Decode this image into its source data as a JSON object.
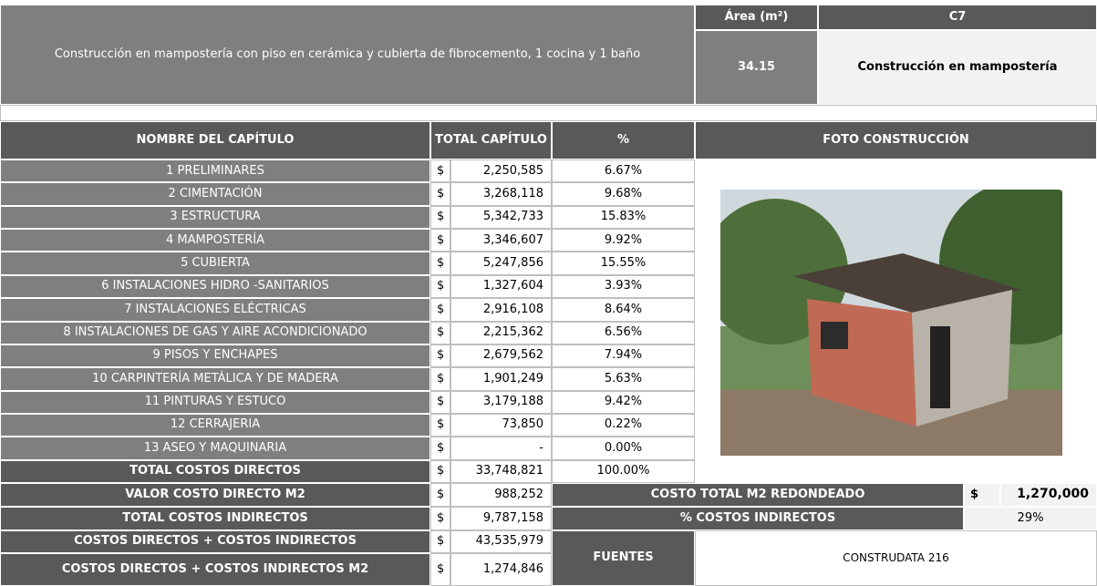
{
  "header": {
    "description": "Construcción en mampostería con piso en cerámica y cubierta de fibrocemento, 1 cocina y 1 baño",
    "area_label": "Área (m²)",
    "code": "C7",
    "area": "34.15",
    "type": "Construcción en mampostería"
  },
  "table": {
    "columns": [
      "NOMBRE DEL CAPÍTULO",
      "TOTAL CAPÍTULO",
      "%",
      "FOTO CONSTRUCCIÓN"
    ],
    "currency": "$",
    "rows": [
      [
        "1  PRELIMINARES",
        "2,250,585",
        "6.67%"
      ],
      [
        "2 CIMENTACIÓN",
        "3,268,118",
        "9.68%"
      ],
      [
        "3 ESTRUCTURA",
        "5,342,733",
        "15.83%"
      ],
      [
        "4 MAMPOSTERÍA",
        "3,346,607",
        "9.92%"
      ],
      [
        "5 CUBIERTA",
        "5,247,856",
        "15.55%"
      ],
      [
        "6 INSTALACIONES HIDRO -SANITARIOS",
        "1,327,604",
        "3.93%"
      ],
      [
        "7 INSTALACIONES ELÉCTRICAS",
        "2,916,108",
        "8.64%"
      ],
      [
        "8 INSTALACIONES DE GAS Y AIRE ACONDICIONADO",
        "2,215,362",
        "6.56%"
      ],
      [
        "9 PISOS Y ENCHAPES",
        "2,679,562",
        "7.94%"
      ],
      [
        "10 CARPINTERÍA METÁLICA Y DE MADERA",
        "1,901,249",
        "5.63%"
      ],
      [
        "11 PINTURAS Y ESTUCO",
        "3,179,188",
        "9.42%"
      ],
      [
        "12 CERRAJERIA",
        "73,850",
        "0.22%"
      ],
      [
        "13 ASEO Y MAQUINARIA",
        "-",
        "0.00%"
      ]
    ],
    "total": [
      "TOTAL COSTOS DIRECTOS",
      "33,748,821",
      "100.00%"
    ],
    "summary": [
      [
        "VALOR COSTO DIRECTO M2",
        "988,252"
      ],
      [
        "TOTAL COSTOS INDIRECTOS",
        "9,787,158"
      ],
      [
        "COSTOS DIRECTOS + COSTOS INDIRECTOS",
        "43,535,979"
      ],
      [
        "COSTOS DIRECTOS + COSTOS INDIRECTOS M2",
        "1,274,846"
      ]
    ]
  },
  "side": {
    "rounded_label": "COSTO TOTAL M2 REDONDEADO",
    "rounded_value": "1,270,000",
    "indirect_label": "% COSTOS INDIRECTOS",
    "indirect_value": "29%",
    "sources_label": "FUENTES",
    "sources": "CONSTRUDATA 216"
  }
}
